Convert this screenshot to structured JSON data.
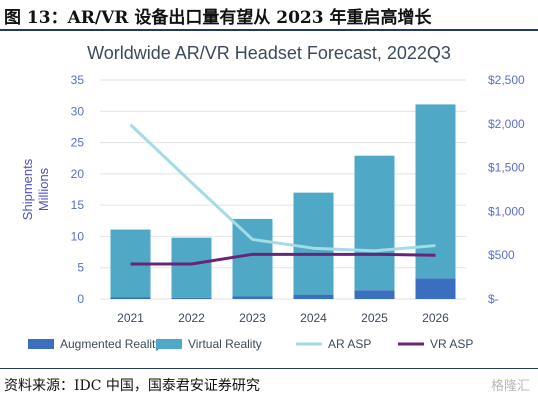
{
  "figure": {
    "header": "图 13：AR/VR 设备出口量有望从 2023 年重启高增长",
    "source": "资料来源：IDC 中国，国泰君安证券研究",
    "watermark": "格隆汇"
  },
  "chart_data": {
    "type": "bar",
    "stacked": true,
    "title": "Worldwide AR/VR Headset Forecast, 2022Q3",
    "ylabel": "Shipments\nMillions",
    "categories": [
      "2021",
      "2022",
      "2023",
      "2024",
      "2025",
      "2026"
    ],
    "ylim": [
      0,
      35
    ],
    "y_ticks": [
      "0",
      "5",
      "10",
      "15",
      "20",
      "25",
      "30",
      "35"
    ],
    "y2lim": [
      0,
      2500
    ],
    "y2_ticks": [
      "$-",
      "$500",
      "$1,000",
      "$1,500",
      "$2,000",
      "$2,500"
    ],
    "grid": true,
    "legend_position": "bottom",
    "series": [
      {
        "name": "Augmented Reality",
        "kind": "bar",
        "axis": "left",
        "color": "#3a6fbf",
        "values": [
          0.3,
          0.2,
          0.4,
          0.7,
          1.4,
          3.3
        ]
      },
      {
        "name": "Virtual Reality",
        "kind": "bar",
        "axis": "left",
        "color": "#4fa9c6",
        "values": [
          10.8,
          9.6,
          12.4,
          16.3,
          21.5,
          27.8
        ]
      },
      {
        "name": "AR ASP",
        "kind": "line",
        "axis": "right",
        "color": "#a5dbe4",
        "values": [
          1990,
          1330,
          680,
          580,
          550,
          610
        ]
      },
      {
        "name": "VR ASP",
        "kind": "line",
        "axis": "right",
        "color": "#6a2477",
        "values": [
          400,
          400,
          510,
          510,
          510,
          500
        ]
      }
    ]
  }
}
